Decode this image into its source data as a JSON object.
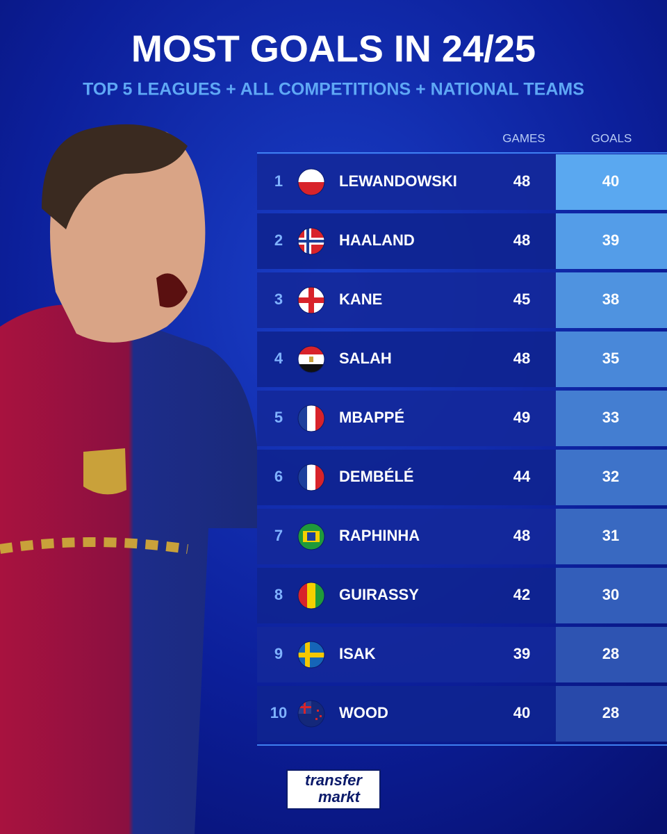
{
  "header": {
    "title": "MOST GOALS IN 24/25",
    "subtitle": "TOP 5 LEAGUES + ALL COMPETITIONS + NATIONAL TEAMS"
  },
  "table": {
    "columns": [
      "GAMES",
      "GOALS"
    ],
    "rows": [
      [
        1,
        "LEWANDOWSKI",
        48,
        40
      ],
      [
        2,
        "HAALAND",
        48,
        39
      ],
      [
        3,
        "KANE",
        45,
        38
      ],
      [
        4,
        "SALAH",
        48,
        35
      ],
      [
        5,
        "MBAPPÉ",
        49,
        33
      ],
      [
        6,
        "DEMBÉLÉ",
        44,
        32
      ],
      [
        7,
        "RAPHINHA",
        48,
        31
      ],
      [
        8,
        "GUIRASSY",
        42,
        30
      ],
      [
        9,
        "ISAK",
        39,
        28
      ],
      [
        10,
        "WOOD",
        40,
        28
      ]
    ]
  },
  "logo": {
    "line1": "transfer",
    "line2": "markt"
  }
}
